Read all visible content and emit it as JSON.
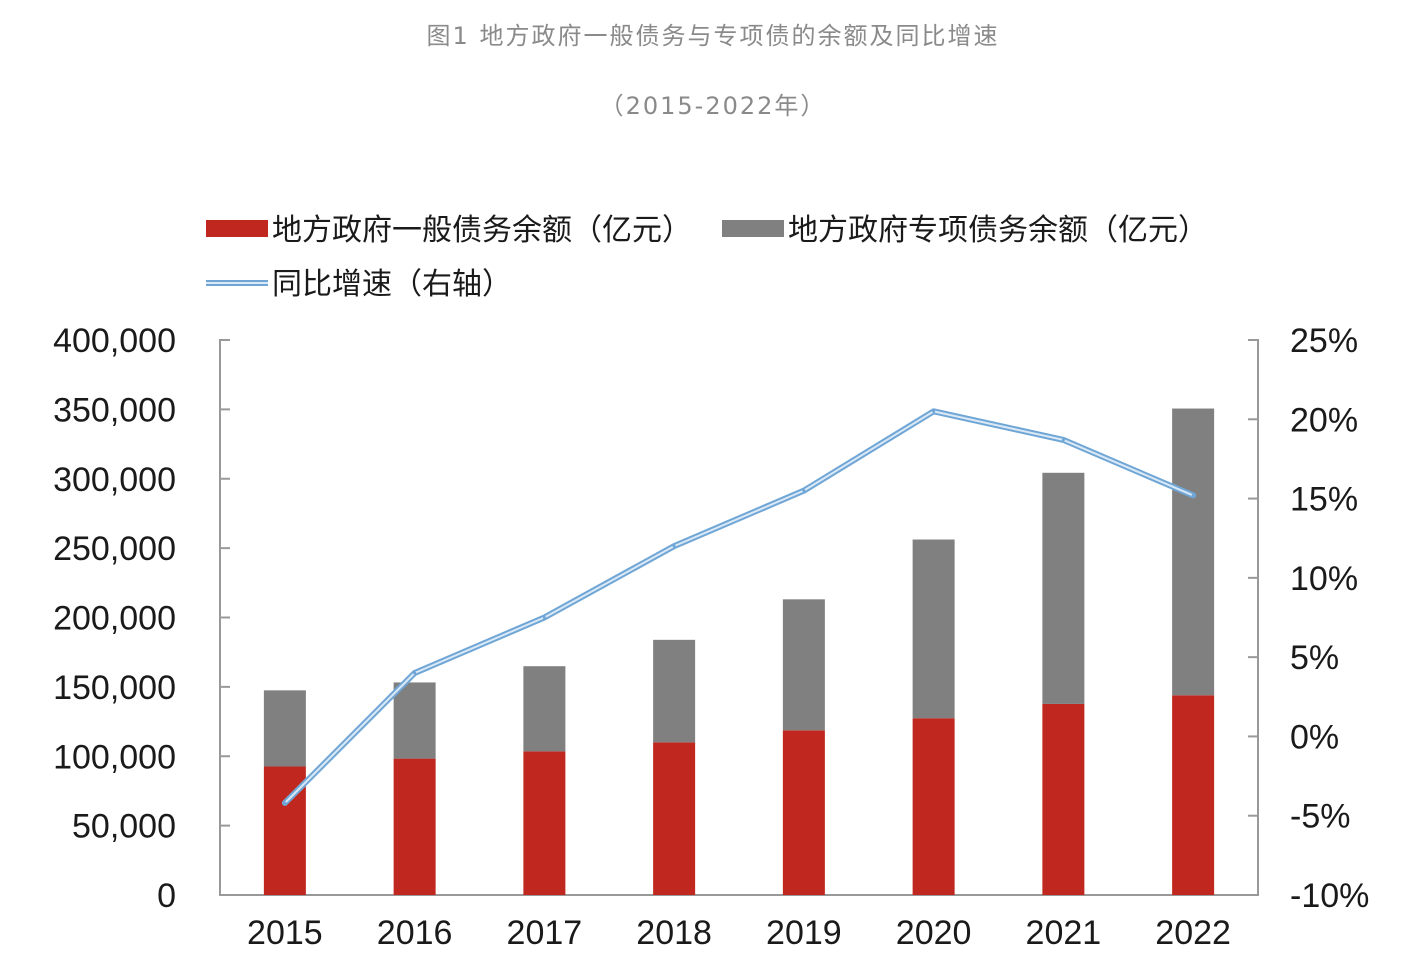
{
  "figure": {
    "title": "图1 地方政府一般债务与专项债的余额及同比增速",
    "subtitle": "（2015-2022年）"
  },
  "chart_data": {
    "type": "bar",
    "stacked": true,
    "categories": [
      "2015",
      "2016",
      "2017",
      "2018",
      "2019",
      "2020",
      "2021",
      "2022"
    ],
    "series": [
      {
        "name": "地方政府一般债务余额（亿元）",
        "kind": "bar",
        "axis": "left",
        "color": "#c0271e",
        "values": [
          92600,
          98300,
          103500,
          110000,
          118700,
          127400,
          137700,
          143900
        ]
      },
      {
        "name": "地方政府专项债务余额（亿元）",
        "kind": "bar",
        "axis": "left",
        "color": "#808080",
        "values": [
          54900,
          54900,
          61400,
          73900,
          94400,
          128800,
          166600,
          206700
        ]
      },
      {
        "name": "同比增速（右轴）",
        "kind": "line",
        "axis": "right",
        "color": "#6fa6d6",
        "values": [
          -4.2,
          4.0,
          7.5,
          12.0,
          15.5,
          20.5,
          18.7,
          15.2
        ]
      }
    ],
    "left_axis": {
      "ylim": [
        0,
        400000
      ],
      "ticks": [
        0,
        50000,
        100000,
        150000,
        200000,
        250000,
        300000,
        350000,
        400000
      ],
      "tick_labels": [
        "0",
        "50,000",
        "100,000",
        "150,000",
        "200,000",
        "250,000",
        "300,000",
        "350,000",
        "400,000"
      ]
    },
    "right_axis": {
      "ylim": [
        -10,
        25
      ],
      "ticks": [
        -10,
        -5,
        0,
        5,
        10,
        15,
        20,
        25
      ],
      "tick_labels": [
        "-10%",
        "-5%",
        "0%",
        "5%",
        "10%",
        "15%",
        "20%",
        "25%"
      ]
    },
    "legend_position": "top-left",
    "grid": false
  }
}
